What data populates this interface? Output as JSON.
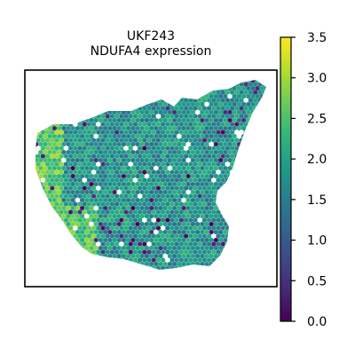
{
  "chart_data": {
    "type": "spatial-scatter",
    "title": [
      "UKF243",
      "NDUFA4 expression"
    ],
    "xlabel": "",
    "ylabel": "",
    "axes_ticks_visible": false,
    "grid": false,
    "legend": "none",
    "marker": "hexagon",
    "colormap": "viridis",
    "colorbar": {
      "placement": "right",
      "min": 0.0,
      "max": 3.5,
      "ticks": [
        0.0,
        0.5,
        1.0,
        1.5,
        2.0,
        2.5,
        3.0,
        3.5
      ],
      "tick_labels": [
        "0.0",
        "0.5",
        "1.0",
        "1.5",
        "2.0",
        "2.5",
        "3.0",
        "3.5"
      ]
    },
    "value_summary": {
      "typical_range": [
        1.3,
        2.3
      ],
      "high_regions": [
        "left edge",
        "lower-left lobe"
      ],
      "low_values": "scattered spots, mostly near tissue edges"
    }
  },
  "colors": {
    "viridis_stops": [
      "#440154",
      "#482878",
      "#3e4989",
      "#31688e",
      "#26828e",
      "#1f9e89",
      "#35b779",
      "#6ece58",
      "#b5de2b",
      "#fde725"
    ]
  }
}
